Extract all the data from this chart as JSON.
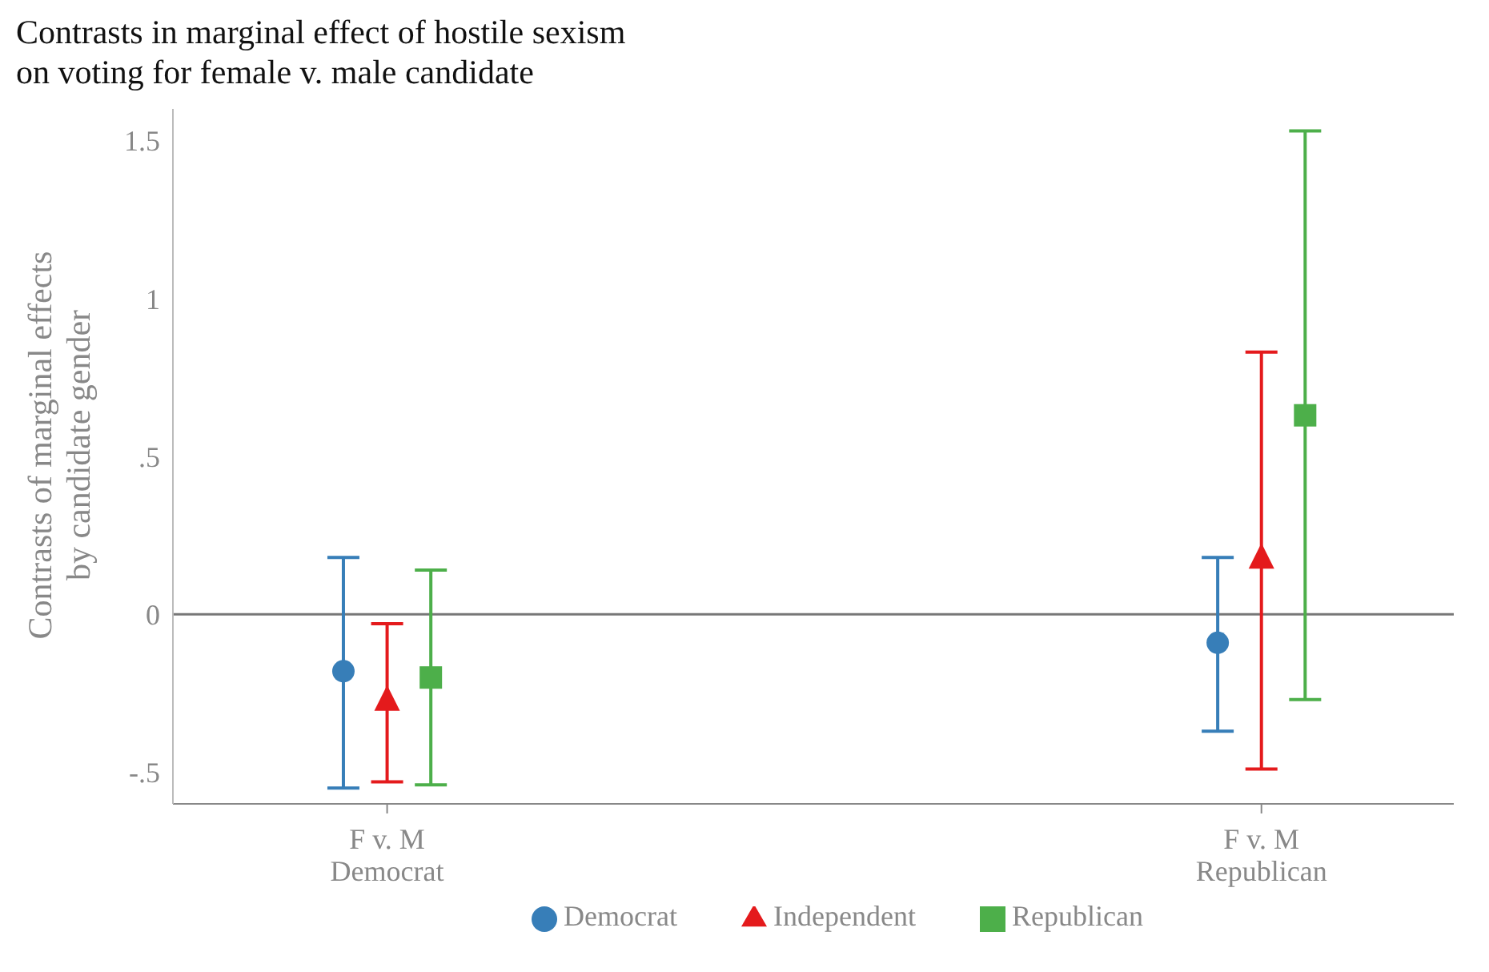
{
  "chart_data": {
    "type": "scatter",
    "title": "Contrasts in marginal effect of hostile sexism\non voting for female v. male candidate",
    "ylabel": "Contrasts of marginal effects\nby candidate gender",
    "categories": [
      "F v. M\nDemocrat",
      "F v. M\nRepublican"
    ],
    "series": [
      {
        "name": "Democrat",
        "color": "#377eb8",
        "marker": "circle",
        "values": [
          -0.18,
          -0.09
        ],
        "errors": [
          [
            -0.55,
            0.18
          ],
          [
            -0.37,
            0.18
          ]
        ]
      },
      {
        "name": "Independent",
        "color": "#e41a1c",
        "marker": "triangle",
        "values": [
          -0.27,
          0.18
        ],
        "errors": [
          [
            -0.53,
            -0.03
          ],
          [
            -0.49,
            0.83
          ]
        ]
      },
      {
        "name": "Republican",
        "color": "#4daf4a",
        "marker": "square",
        "values": [
          -0.2,
          0.63
        ],
        "errors": [
          [
            -0.54,
            0.14
          ],
          [
            -0.27,
            1.53
          ]
        ]
      }
    ],
    "ylim": [
      -0.6,
      1.6
    ],
    "yticks": [
      {
        "value": -0.5,
        "label": "-.5"
      },
      0,
      {
        "value": 0.5,
        "label": ".5"
      },
      1,
      1.5
    ],
    "ref_lines": [
      {
        "axis": "y",
        "value": 0,
        "color": "#777777"
      }
    ],
    "legend": "bottom",
    "grid": false
  }
}
